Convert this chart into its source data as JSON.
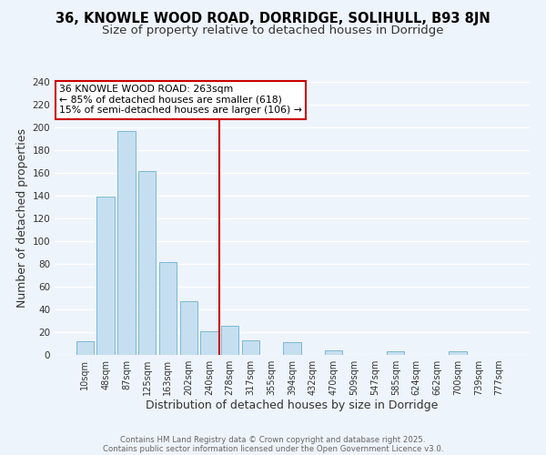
{
  "title_line1": "36, KNOWLE WOOD ROAD, DORRIDGE, SOLIHULL, B93 8JN",
  "title_line2": "Size of property relative to detached houses in Dorridge",
  "xlabel": "Distribution of detached houses by size in Dorridge",
  "ylabel": "Number of detached properties",
  "bar_labels": [
    "10sqm",
    "48sqm",
    "87sqm",
    "125sqm",
    "163sqm",
    "202sqm",
    "240sqm",
    "278sqm",
    "317sqm",
    "355sqm",
    "394sqm",
    "432sqm",
    "470sqm",
    "509sqm",
    "547sqm",
    "585sqm",
    "624sqm",
    "662sqm",
    "700sqm",
    "739sqm",
    "777sqm"
  ],
  "bar_heights": [
    12,
    139,
    197,
    162,
    82,
    47,
    21,
    26,
    13,
    0,
    11,
    0,
    4,
    0,
    0,
    3,
    0,
    0,
    3,
    0,
    0
  ],
  "bar_color": "#c5dff0",
  "bar_edge_color": "#7bb8d4",
  "vline_color": "#cc0000",
  "annotation_title": "36 KNOWLE WOOD ROAD: 263sqm",
  "annotation_line2": "← 85% of detached houses are smaller (618)",
  "annotation_line3": "15% of semi-detached houses are larger (106) →",
  "annotation_box_color": "#ffffff",
  "annotation_box_edge": "#cc0000",
  "footnote1": "Contains HM Land Registry data © Crown copyright and database right 2025.",
  "footnote2": "Contains public sector information licensed under the Open Government Licence v3.0.",
  "ylim": [
    0,
    240
  ],
  "yticks": [
    0,
    20,
    40,
    60,
    80,
    100,
    120,
    140,
    160,
    180,
    200,
    220,
    240
  ],
  "background_color": "#eef4fb",
  "grid_color": "#ffffff",
  "title_fontsize": 10.5,
  "subtitle_fontsize": 9.5,
  "tick_fontsize": 7,
  "axis_label_fontsize": 9
}
